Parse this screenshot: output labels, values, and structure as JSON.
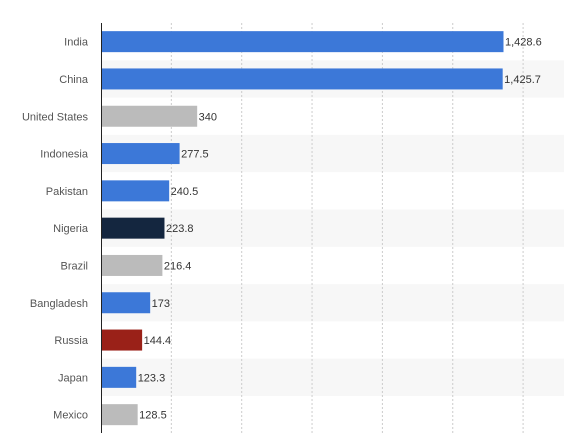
{
  "chart_data": {
    "type": "bar",
    "orientation": "horizontal",
    "categories": [
      "India",
      "China",
      "United States",
      "Indonesia",
      "Pakistan",
      "Nigeria",
      "Brazil",
      "Bangladesh",
      "Russia",
      "Japan",
      "Mexico"
    ],
    "values": [
      1428.6,
      1425.7,
      340,
      277.5,
      240.5,
      223.8,
      216.4,
      173,
      144.4,
      123.3,
      128.5
    ],
    "value_labels": [
      "1,428.6",
      "1,425.7",
      "340",
      "277.5",
      "240.5",
      "223.8",
      "216.4",
      "173",
      "144.4",
      "123.3",
      "128.5"
    ],
    "bar_colors": [
      "#3c78d8",
      "#3c78d8",
      "#bbbbbb",
      "#3c78d8",
      "#3c78d8",
      "#14263f",
      "#bbbbbb",
      "#3c78d8",
      "#9a2118",
      "#3c78d8",
      "#bbbbbb"
    ],
    "xlim": [
      0,
      1750
    ],
    "grid": true,
    "title": "",
    "xlabel": "",
    "ylabel": ""
  }
}
